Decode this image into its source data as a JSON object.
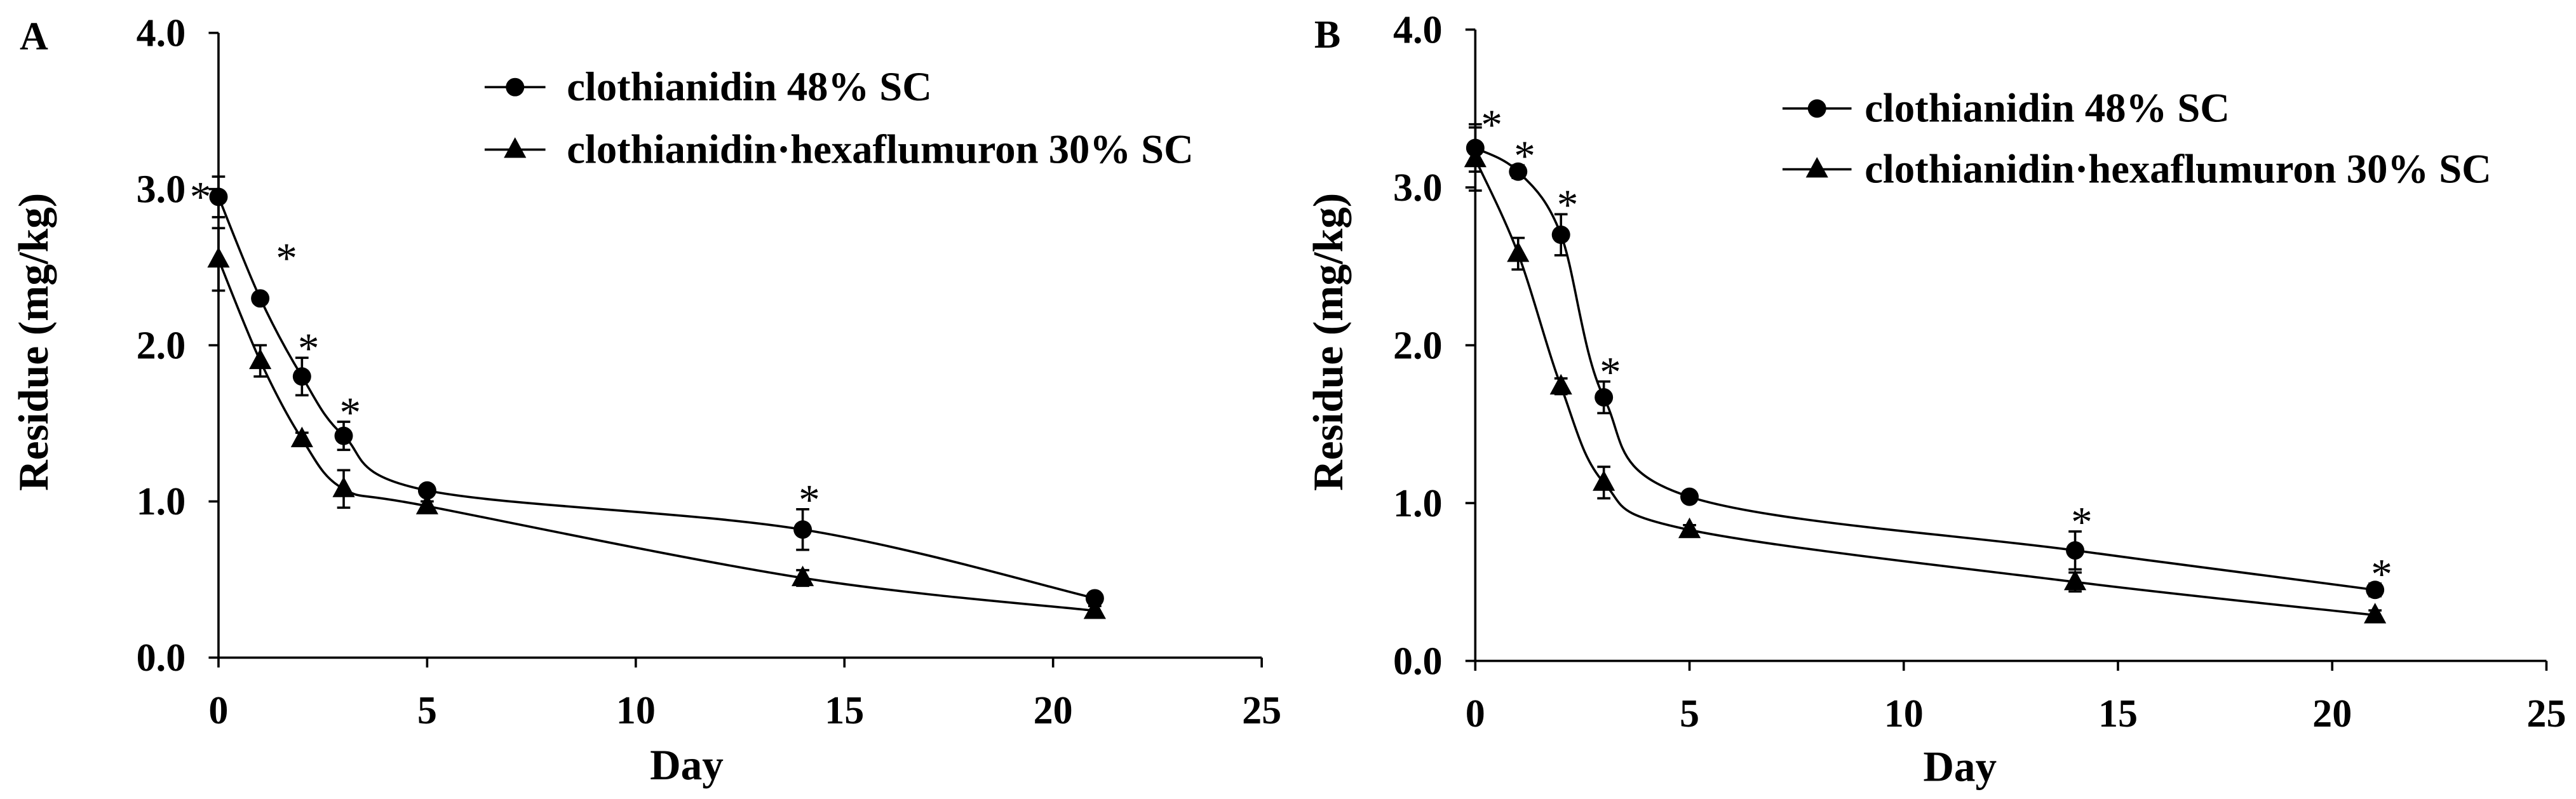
{
  "figure": {
    "background": "#ffffff",
    "ink": "#000000"
  },
  "chart_data": [
    {
      "panel_label": "A",
      "type": "line",
      "title": "",
      "xlabel": "Day",
      "ylabel": "Residue (mg/kg)",
      "xlim": [
        0,
        25
      ],
      "ylim": [
        0,
        4
      ],
      "x_ticks": [
        0,
        5,
        10,
        15,
        20,
        25
      ],
      "x_tick_labels": [
        "0",
        "5",
        "10",
        "15",
        "20",
        "25"
      ],
      "y_ticks": [
        0,
        1,
        2,
        3,
        4
      ],
      "y_tick_labels": [
        "0.0",
        "1.0",
        "2.0",
        "3.0",
        "4.0"
      ],
      "grid": false,
      "legend": "top-right",
      "series": [
        {
          "name": "clothianidin 48% SC",
          "marker": "circle",
          "x": [
            0,
            1,
            2,
            3,
            5,
            14,
            21
          ],
          "values": [
            2.95,
            2.3,
            1.8,
            1.42,
            1.07,
            0.82,
            0.38
          ],
          "errors": [
            0.13,
            0.03,
            0.12,
            0.09,
            0.03,
            0.13,
            0.03
          ]
        },
        {
          "name": "clothianidin·hexaflumuron 30% SC",
          "marker": "triangle",
          "x": [
            0,
            1,
            2,
            3,
            5,
            14,
            21
          ],
          "values": [
            2.55,
            1.9,
            1.4,
            1.08,
            0.97,
            0.51,
            0.3
          ],
          "errors": [
            0.2,
            0.1,
            0.04,
            0.12,
            0.03,
            0.05,
            0.03
          ]
        }
      ],
      "significance": {
        "symbol": "*",
        "days": [
          0,
          1,
          2,
          3,
          14
        ]
      }
    },
    {
      "panel_label": "B",
      "type": "line",
      "title": "",
      "xlabel": "Day",
      "ylabel": "Residue (mg/kg)",
      "xlim": [
        0,
        25
      ],
      "ylim": [
        0,
        4
      ],
      "x_ticks": [
        0,
        5,
        10,
        15,
        20,
        25
      ],
      "x_tick_labels": [
        "0",
        "5",
        "10",
        "15",
        "20",
        "25"
      ],
      "y_ticks": [
        0,
        1,
        2,
        3,
        4
      ],
      "y_tick_labels": [
        "0.0",
        "1.0",
        "2.0",
        "3.0",
        "4.0"
      ],
      "grid": false,
      "legend": "top-right",
      "series": [
        {
          "name": "clothianidin 48% SC",
          "marker": "circle",
          "x": [
            0,
            1,
            2,
            3,
            5,
            14,
            21
          ],
          "values": [
            3.25,
            3.1,
            2.7,
            1.67,
            1.04,
            0.7,
            0.45
          ],
          "errors": [
            0.15,
            0.04,
            0.13,
            0.1,
            0.03,
            0.12,
            0.04
          ]
        },
        {
          "name": "clothianidin·hexaflumuron 30% SC",
          "marker": "triangle",
          "x": [
            0,
            1,
            2,
            3,
            5,
            14,
            21
          ],
          "values": [
            3.18,
            2.58,
            1.74,
            1.13,
            0.83,
            0.5,
            0.29
          ],
          "errors": [
            0.2,
            0.1,
            0.05,
            0.1,
            0.03,
            0.06,
            0.03
          ]
        }
      ],
      "significance": {
        "symbol": "*",
        "days": [
          0,
          1,
          2,
          3,
          14,
          21
        ]
      }
    }
  ]
}
